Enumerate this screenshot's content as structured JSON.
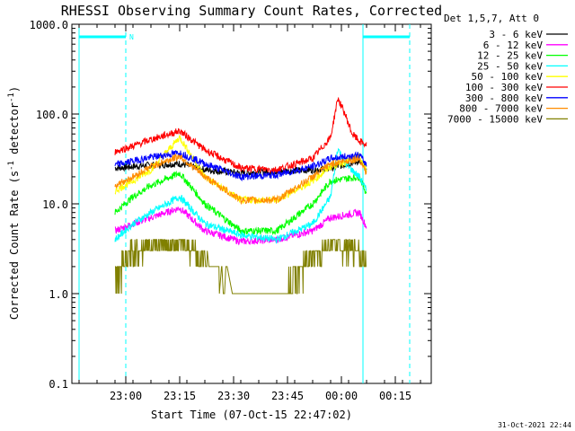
{
  "chart_data": {
    "type": "line",
    "title": "RHESSI Observing Summary Count Rates, Corrected",
    "ylabel_main": "Corrected Count Rate (s",
    "ylabel_sup1": "-1",
    "ylabel_mid": " detector",
    "ylabel_sup2": "-1",
    "ylabel_end": ")",
    "xlabel": "Start Time (07-Oct-15 22:47:02)",
    "yscale": "log",
    "ylim": [
      0.1,
      1000
    ],
    "y_ticks": [
      {
        "v": 0.1,
        "label": "0.1"
      },
      {
        "v": 1,
        "label": "1.0"
      },
      {
        "v": 10,
        "label": "10.0"
      },
      {
        "v": 100,
        "label": "100.0"
      },
      {
        "v": 1000,
        "label": "1000.0"
      }
    ],
    "xlim_min": [
      -2,
      98
    ],
    "x_ticks": [
      {
        "t": 13,
        "label": "23:00"
      },
      {
        "t": 28,
        "label": "23:15"
      },
      {
        "t": 43,
        "label": "23:30"
      },
      {
        "t": 58,
        "label": "23:45"
      },
      {
        "t": 73,
        "label": "00:00"
      },
      {
        "t": 88,
        "label": "00:15"
      }
    ],
    "legend_header": "Det 1,5,7, Att 0",
    "legend_position": "right, outside plot",
    "series": [
      {
        "name": "3 - 6 keV",
        "color": "#000000",
        "t": [
          10,
          15,
          20,
          28,
          35,
          45,
          55,
          65,
          70,
          78,
          80
        ],
        "y": [
          25,
          26,
          27,
          28,
          24,
          22,
          23,
          24,
          25,
          30,
          24
        ]
      },
      {
        "name": "6 - 12 keV",
        "color": "#ff00ff",
        "t": [
          10,
          15,
          20,
          28,
          35,
          45,
          55,
          65,
          70,
          78,
          80
        ],
        "y": [
          5,
          6,
          7,
          9,
          5,
          3.8,
          4,
          5,
          7,
          8,
          5.5
        ]
      },
      {
        "name": "12 - 25 keV",
        "color": "#00ff00",
        "t": [
          10,
          15,
          20,
          28,
          35,
          45,
          55,
          65,
          70,
          78,
          80
        ],
        "y": [
          8,
          12,
          16,
          22,
          10,
          5,
          5,
          10,
          18,
          20,
          13
        ]
      },
      {
        "name": "25 - 50 keV",
        "color": "#00ffff",
        "t": [
          10,
          15,
          20,
          28,
          35,
          45,
          55,
          65,
          70,
          72,
          74,
          78,
          80
        ],
        "y": [
          4,
          6,
          8,
          12,
          6,
          4.5,
          4,
          6,
          12,
          42,
          28,
          20,
          14
        ]
      },
      {
        "name": "50 - 100 keV",
        "color": "#ffff00",
        "t": [
          10,
          15,
          20,
          28,
          35,
          45,
          55,
          65,
          70,
          78,
          80
        ],
        "y": [
          14,
          18,
          24,
          55,
          20,
          11,
          11,
          18,
          26,
          33,
          24
        ]
      },
      {
        "name": "100 - 300 keV",
        "color": "#ff0000",
        "t": [
          10,
          15,
          20,
          28,
          35,
          45,
          55,
          65,
          70,
          72,
          74,
          76,
          78,
          80
        ],
        "y": [
          38,
          44,
          52,
          65,
          40,
          25,
          24,
          32,
          55,
          150,
          100,
          60,
          50,
          45
        ]
      },
      {
        "name": "300 - 800 keV",
        "color": "#0000ff",
        "t": [
          10,
          15,
          20,
          28,
          35,
          45,
          55,
          65,
          70,
          78,
          80
        ],
        "y": [
          27,
          30,
          33,
          37,
          28,
          20,
          21,
          26,
          32,
          35,
          27
        ]
      },
      {
        "name": "800 - 7000 keV",
        "color": "#ff8c00",
        "t": [
          10,
          15,
          20,
          28,
          35,
          45,
          55,
          65,
          70,
          78,
          80
        ],
        "y": [
          16,
          20,
          26,
          34,
          20,
          11,
          11,
          20,
          28,
          32,
          22
        ]
      },
      {
        "name": "7000 - 15000 keV",
        "color": "#808000",
        "t": [
          10,
          15,
          20,
          28,
          35,
          45,
          55,
          65,
          70,
          78,
          80
        ],
        "y": [
          1.5,
          3,
          3.5,
          3.8,
          2.5,
          1,
          1,
          2.5,
          3.5,
          3,
          2
        ]
      }
    ],
    "vertical_lines": [
      {
        "t": 0,
        "style": "solid",
        "color": "#00ffff"
      },
      {
        "t": 13,
        "style": "dashed",
        "color": "#00ffff"
      },
      {
        "t": 79,
        "style": "solid",
        "color": "#00ffff"
      },
      {
        "t": 92,
        "style": "dashed",
        "color": "#00ffff"
      }
    ],
    "top_bars": [
      {
        "t0": 0,
        "t1": 13,
        "color": "#00ffff",
        "label": "N"
      },
      {
        "t0": 79,
        "t1": 92,
        "color": "#00ffff",
        "label": ""
      }
    ],
    "footer": "31-Oct-2021 22:44"
  }
}
